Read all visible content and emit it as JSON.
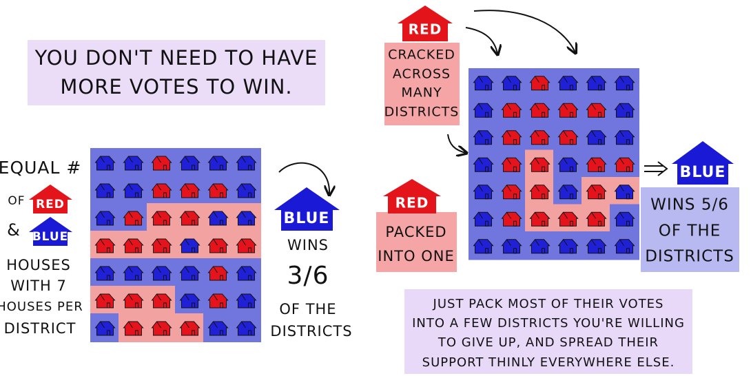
{
  "title": [
    "YOU DON'T NEED TO HAVE",
    "MORE VOTES TO WIN."
  ],
  "left": {
    "legend": {
      "equal": "EQUAL #",
      "of": "OF",
      "red": "RED",
      "and": "&",
      "blue": "BLUE",
      "description": [
        "HOUSES",
        "WITH 7",
        "HOUSES PER",
        "DISTRICT"
      ]
    },
    "result": {
      "party": "BLUE",
      "lines": [
        "WINS",
        "3/6",
        "OF THE",
        "DISTRICTS"
      ]
    }
  },
  "right": {
    "cracked": {
      "party": "RED",
      "lines": [
        "CRACKED",
        "ACROSS",
        "MANY",
        "DISTRICTS"
      ]
    },
    "packed": {
      "party": "RED",
      "lines": [
        "PACKED",
        "INTO ONE"
      ]
    },
    "result": {
      "party": "BLUE",
      "lines": [
        "WINS 5/6",
        "OF THE",
        "DISTRICTS"
      ]
    },
    "caption": [
      "JUST PACK MOST OF THEIR VOTES",
      "INTO A FEW DISTRICTS YOU'RE WILLING",
      "TO GIVE UP, AND SPREAD THEIR",
      "SUPPORT THINLY EVERYWHERE ELSE."
    ]
  }
}
